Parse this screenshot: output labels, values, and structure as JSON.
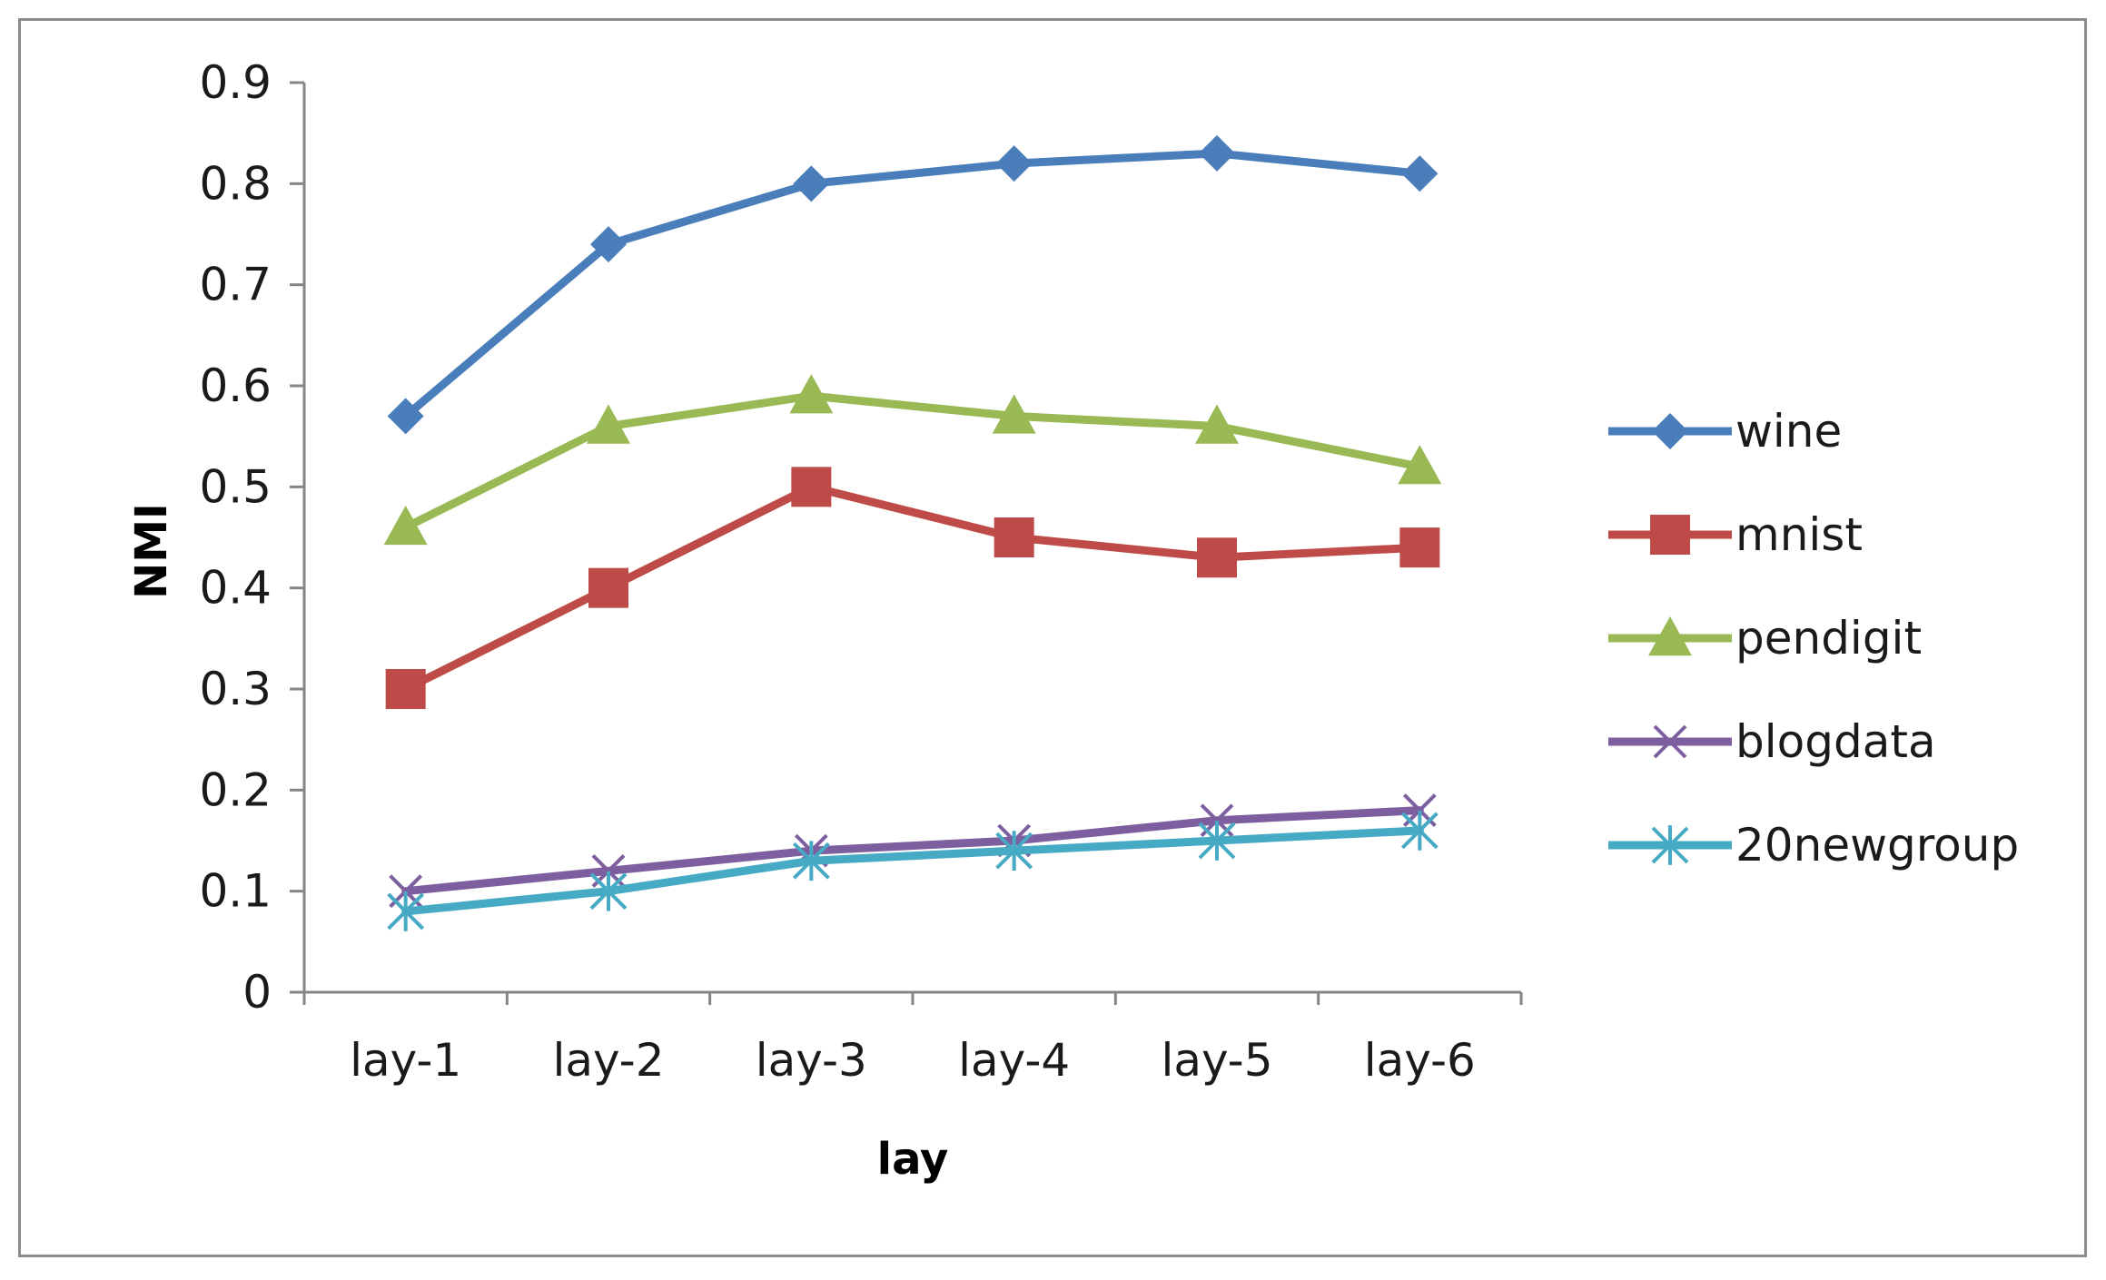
{
  "chart_data": {
    "type": "line",
    "title": "",
    "xlabel": "lay",
    "ylabel": "NMI",
    "categories": [
      "lay-1",
      "lay-2",
      "lay-3",
      "lay-4",
      "lay-5",
      "lay-6"
    ],
    "ylim": [
      0,
      0.9
    ],
    "yticks": [
      "0",
      "0.1",
      "0.2",
      "0.3",
      "0.4",
      "0.5",
      "0.6",
      "0.7",
      "0.8",
      "0.9"
    ],
    "grid": false,
    "legend_position": "right",
    "series": [
      {
        "name": "wine",
        "values": [
          0.57,
          0.74,
          0.8,
          0.82,
          0.83,
          0.81
        ],
        "color": "#4a7ebb",
        "marker": "diamond"
      },
      {
        "name": "mnist",
        "values": [
          0.3,
          0.4,
          0.5,
          0.45,
          0.43,
          0.44
        ],
        "color": "#be4b48",
        "marker": "square"
      },
      {
        "name": "pendigit",
        "values": [
          0.46,
          0.56,
          0.59,
          0.57,
          0.56,
          0.52
        ],
        "color": "#98b954",
        "marker": "triangle"
      },
      {
        "name": "blogdata",
        "values": [
          0.1,
          0.12,
          0.14,
          0.15,
          0.17,
          0.18
        ],
        "color": "#7d5fa0",
        "marker": "x"
      },
      {
        "name": "20newgroup",
        "values": [
          0.08,
          0.1,
          0.13,
          0.14,
          0.15,
          0.16
        ],
        "color": "#46aac5",
        "marker": "star"
      }
    ]
  }
}
